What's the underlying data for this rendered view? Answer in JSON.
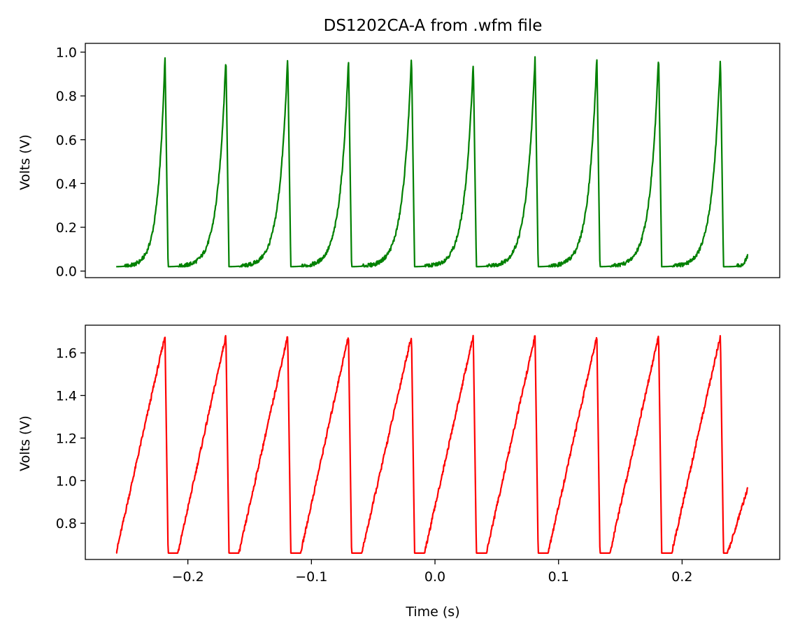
{
  "chart_data": [
    {
      "type": "line",
      "title": "DS1202CA-A from .wfm file",
      "xlabel": "",
      "ylabel": "Volts (V)",
      "xlim": [
        -0.283,
        0.279
      ],
      "ylim": [
        -0.03,
        1.04
      ],
      "xticks": [],
      "yticks": [
        "0.0",
        "0.2",
        "0.4",
        "0.6",
        "0.8",
        "1.0"
      ],
      "grid": false,
      "color": "#008000",
      "waveform": {
        "t_start": -0.258,
        "t_end": 0.253,
        "baseline": 0.02,
        "peak_times": [
          -0.2185,
          -0.1692,
          -0.1192,
          -0.07,
          -0.019,
          0.031,
          0.081,
          0.131,
          0.181,
          0.231
        ],
        "peak_values": [
          0.98,
          0.98,
          0.98,
          0.97,
          0.98,
          0.96,
          0.98,
          0.98,
          0.99,
          0.98
        ],
        "end_value": 0.07
      }
    },
    {
      "type": "line",
      "title": "",
      "xlabel": "Time (s)",
      "ylabel": "Volts (V)",
      "xlim": [
        -0.283,
        0.279
      ],
      "ylim": [
        0.63,
        1.73
      ],
      "xticks": [
        "−0.2",
        "−0.1",
        "0.0",
        "0.1",
        "0.2"
      ],
      "yticks": [
        "0.8",
        "1.0",
        "1.2",
        "1.4",
        "1.6"
      ],
      "grid": false,
      "color": "#ff0000",
      "waveform": {
        "t_start": -0.258,
        "t_end": 0.253,
        "baseline": 0.66,
        "start_value": 0.66,
        "peak_times": [
          -0.2185,
          -0.1692,
          -0.1192,
          -0.07,
          -0.019,
          0.031,
          0.081,
          0.131,
          0.181,
          0.231
        ],
        "peak_values": [
          1.68,
          1.68,
          1.68,
          1.68,
          1.68,
          1.68,
          1.68,
          1.68,
          1.68,
          1.68
        ],
        "end_value": 0.96
      }
    }
  ]
}
